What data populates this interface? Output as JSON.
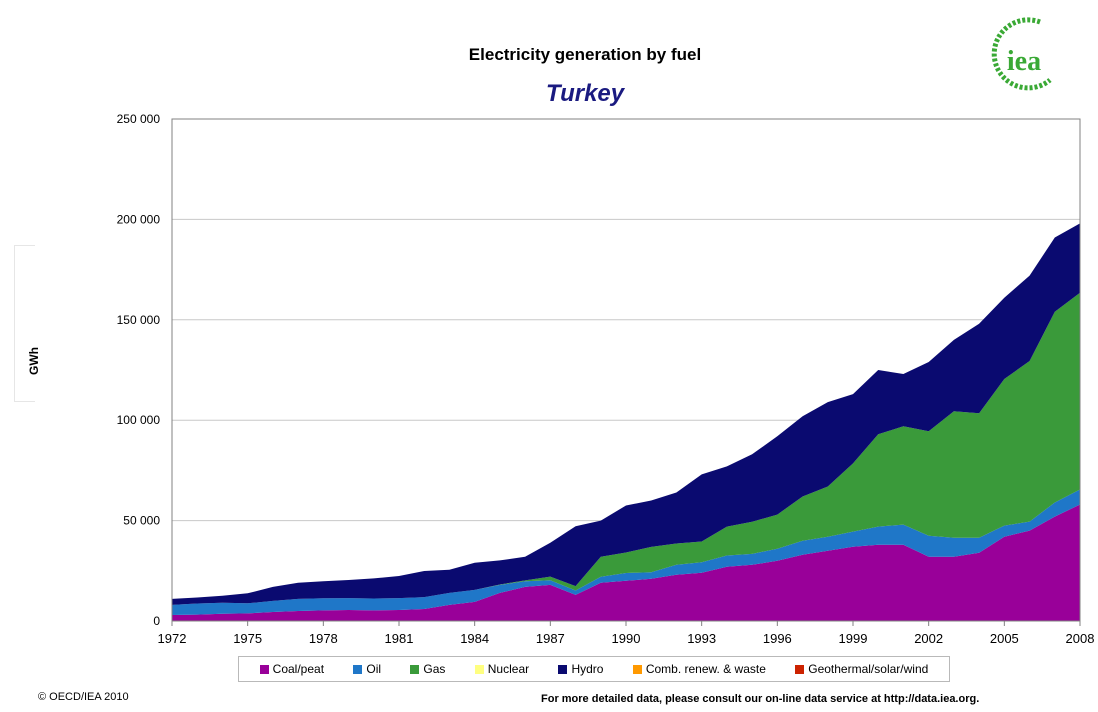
{
  "header": {
    "title": "Electricity generation by fuel",
    "subtitle": "Turkey"
  },
  "logo": {
    "text": "iea",
    "color": "#3aa935"
  },
  "footer": {
    "copyright": "© OECD/IEA 2010",
    "note": "For more detailed data, please consult our on-line data service at http://data.iea.org."
  },
  "chart_data": {
    "type": "area",
    "stacked": true,
    "title": "Electricity generation by fuel",
    "subtitle": "Turkey",
    "xlabel": "",
    "ylabel": "GWh",
    "ylim": [
      0,
      250000
    ],
    "yticks": [
      0,
      50000,
      100000,
      150000,
      200000,
      250000
    ],
    "ytick_labels": [
      "0",
      "50 000",
      "100 000",
      "150 000",
      "200 000",
      "250 000"
    ],
    "xticks": [
      1972,
      1975,
      1978,
      1981,
      1984,
      1987,
      1990,
      1993,
      1996,
      1999,
      2002,
      2005,
      2008
    ],
    "grid": true,
    "legend_position": "bottom",
    "x": [
      1972,
      1973,
      1974,
      1975,
      1976,
      1977,
      1978,
      1979,
      1980,
      1981,
      1982,
      1983,
      1984,
      1985,
      1986,
      1987,
      1988,
      1989,
      1990,
      1991,
      1992,
      1993,
      1994,
      1995,
      1996,
      1997,
      1998,
      1999,
      2000,
      2001,
      2002,
      2003,
      2004,
      2005,
      2006,
      2007,
      2008
    ],
    "series": [
      {
        "name": "Coal/peat",
        "color": "#990099",
        "values": [
          3000,
          3200,
          3600,
          3800,
          4500,
          5000,
          5300,
          5500,
          5300,
          5500,
          6000,
          8000,
          9500,
          14000,
          17000,
          18000,
          13000,
          19000,
          20000,
          21000,
          23000,
          24000,
          27000,
          28000,
          30000,
          33000,
          35000,
          37000,
          38000,
          38000,
          32000,
          32000,
          34000,
          42000,
          45000,
          52000,
          58000
        ]
      },
      {
        "name": "Oil",
        "color": "#1f77c8",
        "values": [
          5000,
          5500,
          5500,
          5000,
          5500,
          6000,
          6000,
          5900,
          5900,
          5900,
          5900,
          6000,
          6000,
          4000,
          2800,
          2300,
          2200,
          3000,
          3900,
          3300,
          5000,
          5300,
          5600,
          5400,
          6000,
          7000,
          7000,
          7500,
          9000,
          10000,
          10500,
          9500,
          7500,
          5500,
          4500,
          7000,
          7500
        ]
      },
      {
        "name": "Gas",
        "color": "#3a9a3a",
        "values": [
          0,
          0,
          0,
          0,
          0,
          0,
          0,
          0,
          0,
          0,
          0,
          0,
          0,
          200,
          400,
          1800,
          2200,
          10000,
          10200,
          12600,
          10600,
          10300,
          14400,
          16000,
          17000,
          22000,
          25000,
          34000,
          46000,
          49000,
          52000,
          63000,
          62000,
          73000,
          80000,
          95000,
          98000
        ]
      },
      {
        "name": "Nuclear",
        "color": "#ffff80",
        "values": [
          0,
          0,
          0,
          0,
          0,
          0,
          0,
          0,
          0,
          0,
          0,
          0,
          0,
          0,
          0,
          0,
          0,
          0,
          0,
          0,
          0,
          0,
          0,
          0,
          0,
          0,
          0,
          0,
          0,
          0,
          0,
          0,
          0,
          0,
          0,
          0,
          0
        ]
      },
      {
        "name": "Hydro",
        "color": "#0a0a70",
        "values": [
          3000,
          3000,
          3500,
          5000,
          7000,
          8000,
          8500,
          9000,
          10000,
          11000,
          13000,
          11500,
          13500,
          12000,
          11800,
          16900,
          29800,
          18000,
          23400,
          23100,
          25400,
          33400,
          30000,
          33600,
          39000,
          40000,
          42000,
          34500,
          32000,
          26000,
          34500,
          35500,
          44500,
          40500,
          42500,
          37000,
          34500
        ]
      },
      {
        "name": "Comb. renew. & waste",
        "color": "#ff9900",
        "values": [
          0,
          0,
          0,
          0,
          0,
          0,
          0,
          0,
          0,
          0,
          0,
          0,
          0,
          0,
          0,
          0,
          0,
          0,
          0,
          0,
          0,
          0,
          0,
          0,
          0,
          0,
          0,
          0,
          0,
          0,
          0,
          0,
          0,
          0,
          0,
          0,
          0
        ]
      },
      {
        "name": "Geothermal/solar/wind",
        "color": "#cc2200",
        "values": [
          0,
          0,
          0,
          0,
          0,
          0,
          0,
          0,
          0,
          0,
          0,
          0,
          0,
          0,
          0,
          0,
          0,
          0,
          0,
          0,
          0,
          0,
          0,
          0,
          0,
          0,
          0,
          0,
          0,
          0,
          0,
          0,
          0,
          0,
          0,
          0,
          0
        ]
      }
    ]
  }
}
